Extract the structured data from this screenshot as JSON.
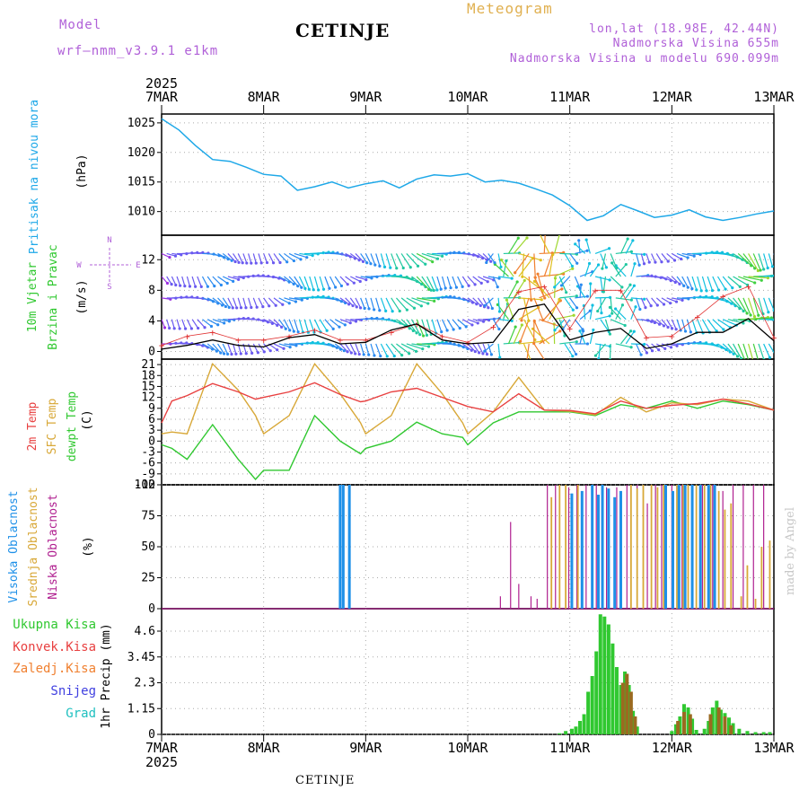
{
  "header": {
    "model_label": "Model",
    "model_version": "wrf—nmm_v3.9.1  e1km",
    "chart_kind": "Meteogram",
    "station": "CETINJE",
    "location": "lon,lat (18.98E, 42.44N)",
    "elevation": "Nadmorska Visina 655m",
    "model_elevation": "Nadmorska Visina u modelu 690.099m",
    "footer_station": "CETINJE",
    "credit": "made by Angel"
  },
  "time_axis": {
    "year": "2025",
    "ticks": [
      "7MAR",
      "8MAR",
      "9MAR",
      "10MAR",
      "11MAR",
      "12MAR",
      "13MAR"
    ]
  },
  "colors": {
    "pressure": "#1ea8e8",
    "wind_speed": "#000000",
    "gust": "#e03030",
    "t2m": "#e84040",
    "sfc": "#d8a838",
    "dewpt": "#30c830",
    "cloud_high": "#1e90e8",
    "cloud_mid": "#d8a838",
    "cloud_low": "#b02090",
    "precip_total": "#30c830",
    "precip_conv": "#e84040",
    "precip_frz": "#f08030",
    "snow": "#4040e0",
    "hail": "#20c0c0",
    "panel_labels_green": "#30c830"
  },
  "chart_data": [
    {
      "type": "line",
      "id": "pressure",
      "ylabel": "Pritisak na nivou mora",
      "unit": "(hPa)",
      "yticks": [
        1010,
        1015,
        1020,
        1025
      ],
      "ylim": [
        1006,
        1026.5
      ],
      "x_days": [
        0,
        0.17,
        0.33,
        0.5,
        0.67,
        0.83,
        1.0,
        1.17,
        1.33,
        1.5,
        1.67,
        1.83,
        2.0,
        2.17,
        2.33,
        2.5,
        2.67,
        2.83,
        3.0,
        3.17,
        3.33,
        3.5,
        3.67,
        3.83,
        4.0,
        4.17,
        4.33,
        4.5,
        4.67,
        4.83,
        5.0,
        5.17,
        5.33,
        5.5,
        5.67,
        5.83,
        6.0
      ],
      "values": [
        1025.7,
        1023.8,
        1021.2,
        1018.8,
        1018.5,
        1017.5,
        1016.3,
        1016.0,
        1013.6,
        1014.2,
        1015.0,
        1014.0,
        1014.7,
        1015.2,
        1014.0,
        1015.5,
        1016.2,
        1016.0,
        1016.4,
        1015.0,
        1015.3,
        1014.8,
        1013.8,
        1012.8,
        1011.0,
        1008.5,
        1009.3,
        1011.2,
        1010.1,
        1009.0,
        1009.4,
        1010.3,
        1009.1,
        1008.5,
        1009.0,
        1009.6,
        1010.1
      ]
    },
    {
      "type": "line",
      "id": "wind",
      "ylabel": "10m Vjetar",
      "ylabel2": "Brzina i Pravac",
      "unit": "(m/s)",
      "compass": {
        "n": "N",
        "s": "S",
        "e": "E",
        "w": "W"
      },
      "yticks": [
        0,
        4,
        8,
        12
      ],
      "ylim": [
        -1,
        15.2
      ],
      "x_days": [
        0,
        0.25,
        0.5,
        0.75,
        1.0,
        1.25,
        1.5,
        1.75,
        2.0,
        2.25,
        2.5,
        2.75,
        3.0,
        3.25,
        3.5,
        3.75,
        4.0,
        4.25,
        4.5,
        4.75,
        5.0,
        5.25,
        5.5,
        5.75,
        6.0
      ],
      "speed": [
        0.3,
        0.8,
        1.5,
        0.8,
        0.6,
        1.8,
        2.2,
        1.0,
        1.2,
        2.8,
        3.6,
        1.5,
        1.0,
        1.2,
        5.5,
        6.2,
        1.5,
        2.5,
        3.0,
        0.4,
        1.0,
        2.5,
        2.5,
        4.3,
        1.4
      ],
      "gust": [
        0.8,
        2.0,
        2.5,
        1.5,
        1.5,
        2.0,
        2.8,
        1.5,
        1.5,
        2.5,
        3.6,
        2.0,
        1.2,
        3.2,
        7.8,
        8.5,
        3.0,
        8.0,
        8.0,
        1.8,
        2.0,
        4.5,
        7.2,
        8.5,
        1.8
      ],
      "arrow_bands": [
        1,
        4.2,
        7,
        9.8,
        12.8
      ]
    },
    {
      "type": "line",
      "id": "temperature",
      "ylabel": "2m Temp",
      "ylabel2": "SFC Temp",
      "ylabel3": "dewpt Temp",
      "unit": "(C)",
      "yticks": [
        -12,
        -9,
        -6,
        -3,
        0,
        3,
        6,
        9,
        12,
        15,
        18,
        21
      ],
      "ylim": [
        -12,
        22.5
      ],
      "x_days": [
        0,
        0.1,
        0.25,
        0.5,
        0.75,
        0.92,
        1.0,
        1.25,
        1.5,
        1.75,
        1.95,
        2.0,
        2.25,
        2.5,
        2.75,
        2.95,
        3.0,
        3.25,
        3.5,
        3.75,
        4.0,
        4.25,
        4.5,
        4.75,
        5.0,
        5.25,
        5.5,
        5.75,
        6.0
      ],
      "t2m": [
        5,
        11,
        12.5,
        15.8,
        13.5,
        11.5,
        12,
        13.5,
        16,
        12.8,
        10.8,
        11,
        13.5,
        14.5,
        12,
        10,
        9.5,
        8,
        13,
        8.5,
        8.4,
        7.5,
        11,
        9,
        9.8,
        10.3,
        11.5,
        10.2,
        8.5
      ],
      "sfc": [
        2,
        2.5,
        2,
        21.2,
        14,
        7,
        2,
        7,
        21.2,
        13,
        5,
        2,
        7,
        21.2,
        13,
        5,
        2,
        8,
        17.5,
        8.5,
        8.2,
        7.2,
        12,
        8,
        10.5,
        10,
        11.5,
        11,
        8.5
      ],
      "dewpt": [
        -1,
        -2,
        -5,
        4.5,
        -5,
        -10.5,
        -8,
        -8,
        7,
        0,
        -3.5,
        -2,
        0,
        5.2,
        2,
        1,
        -1,
        5,
        8,
        8,
        8,
        7,
        10,
        9,
        11,
        9,
        11,
        10,
        8.5
      ]
    },
    {
      "type": "bar",
      "id": "clouds",
      "ylabel": "Visoka Oblacnost",
      "ylabel2": "Srednja Oblacnost",
      "ylabel3": "Niska Oblacnost",
      "unit": "(%)",
      "yticks": [
        0,
        25,
        50,
        75,
        100
      ],
      "ylim": [
        0,
        100
      ],
      "high": [
        [
          1.75,
          100
        ],
        [
          1.78,
          100
        ],
        [
          1.84,
          100
        ],
        [
          4.02,
          93
        ],
        [
          4.12,
          95
        ],
        [
          4.22,
          100
        ],
        [
          4.28,
          92
        ],
        [
          4.32,
          100
        ],
        [
          4.38,
          97
        ],
        [
          4.44,
          90
        ],
        [
          4.5,
          95
        ],
        [
          4.94,
          100
        ],
        [
          5.01,
          95
        ],
        [
          5.07,
          100
        ],
        [
          5.13,
          100
        ],
        [
          5.2,
          100
        ],
        [
          5.28,
          100
        ],
        [
          5.36,
          100
        ],
        [
          5.42,
          100
        ]
      ],
      "mid": [
        [
          3.82,
          90
        ],
        [
          3.9,
          100
        ],
        [
          3.96,
          100
        ],
        [
          4.08,
          100
        ],
        [
          4.6,
          100
        ],
        [
          4.66,
          97
        ],
        [
          4.72,
          100
        ],
        [
          4.8,
          100
        ],
        [
          4.86,
          98
        ],
        [
          4.92,
          100
        ],
        [
          5.05,
          100
        ],
        [
          5.11,
          100
        ],
        [
          5.16,
          100
        ],
        [
          5.24,
          100
        ],
        [
          5.32,
          100
        ],
        [
          5.38,
          100
        ],
        [
          5.46,
          95
        ],
        [
          5.52,
          80
        ],
        [
          5.58,
          85
        ],
        [
          5.68,
          10
        ],
        [
          5.74,
          35
        ],
        [
          5.82,
          8
        ],
        [
          5.88,
          50
        ],
        [
          5.96,
          55
        ]
      ],
      "low": [
        [
          3.32,
          10
        ],
        [
          3.42,
          70
        ],
        [
          3.5,
          20
        ],
        [
          3.62,
          10
        ],
        [
          3.68,
          8
        ],
        [
          3.78,
          100
        ],
        [
          3.86,
          100
        ],
        [
          3.99,
          98
        ],
        [
          4.07,
          100
        ],
        [
          4.16,
          100
        ],
        [
          4.26,
          100
        ],
        [
          4.36,
          98
        ],
        [
          4.46,
          98
        ],
        [
          4.56,
          100
        ],
        [
          4.66,
          100
        ],
        [
          4.76,
          85
        ],
        [
          4.84,
          100
        ],
        [
          4.9,
          100
        ],
        [
          5.0,
          100
        ],
        [
          5.1,
          100
        ],
        [
          5.2,
          100
        ],
        [
          5.3,
          100
        ],
        [
          5.4,
          100
        ],
        [
          5.5,
          95
        ],
        [
          5.6,
          100
        ],
        [
          5.7,
          100
        ],
        [
          5.8,
          100
        ],
        [
          5.9,
          100
        ]
      ]
    },
    {
      "type": "bar",
      "id": "precip",
      "ylabel": "1hr Precip",
      "unit": "(mm)",
      "legend": [
        "Ukupna Kisa",
        "Konvek.Kisa",
        "Zaledj.Kisa",
        "Snijeg",
        "Grad"
      ],
      "yticks": [
        0,
        1.15,
        2.3,
        3.45,
        4.6
      ],
      "ytick_labels": [
        "0",
        "1.15",
        "2.3",
        "3.45",
        "4.6"
      ],
      "ylim": [
        0,
        5.6
      ],
      "total": [
        [
          3.9,
          0.05
        ],
        [
          3.96,
          0.15
        ],
        [
          4.02,
          0.25
        ],
        [
          4.06,
          0.35
        ],
        [
          4.1,
          0.6
        ],
        [
          4.14,
          0.9
        ],
        [
          4.18,
          1.9
        ],
        [
          4.22,
          2.6
        ],
        [
          4.26,
          3.7
        ],
        [
          4.3,
          5.35
        ],
        [
          4.34,
          5.25
        ],
        [
          4.38,
          4.9
        ],
        [
          4.42,
          4.05
        ],
        [
          4.46,
          3.0
        ],
        [
          4.5,
          2.2
        ],
        [
          4.54,
          2.8
        ],
        [
          4.58,
          2.2
        ],
        [
          4.62,
          1.05
        ],
        [
          4.66,
          0.35
        ],
        [
          5.0,
          0.15
        ],
        [
          5.04,
          0.45
        ],
        [
          5.08,
          0.8
        ],
        [
          5.12,
          1.35
        ],
        [
          5.16,
          1.2
        ],
        [
          5.2,
          0.7
        ],
        [
          5.24,
          0.2
        ],
        [
          5.32,
          0.25
        ],
        [
          5.36,
          0.6
        ],
        [
          5.4,
          1.2
        ],
        [
          5.44,
          1.5
        ],
        [
          5.48,
          1.1
        ],
        [
          5.52,
          0.95
        ],
        [
          5.56,
          0.75
        ],
        [
          5.6,
          0.5
        ],
        [
          5.66,
          0.25
        ],
        [
          5.74,
          0.15
        ],
        [
          5.82,
          0.1
        ],
        [
          5.9,
          0.1
        ],
        [
          5.96,
          0.1
        ]
      ],
      "conv": [
        [
          4.52,
          2.3
        ],
        [
          4.56,
          2.7
        ],
        [
          4.6,
          1.9
        ],
        [
          4.64,
          0.8
        ],
        [
          5.06,
          0.6
        ],
        [
          5.12,
          1.0
        ],
        [
          5.18,
          0.9
        ],
        [
          5.38,
          0.9
        ],
        [
          5.46,
          1.2
        ],
        [
          5.52,
          0.8
        ],
        [
          5.58,
          0.4
        ]
      ]
    }
  ]
}
